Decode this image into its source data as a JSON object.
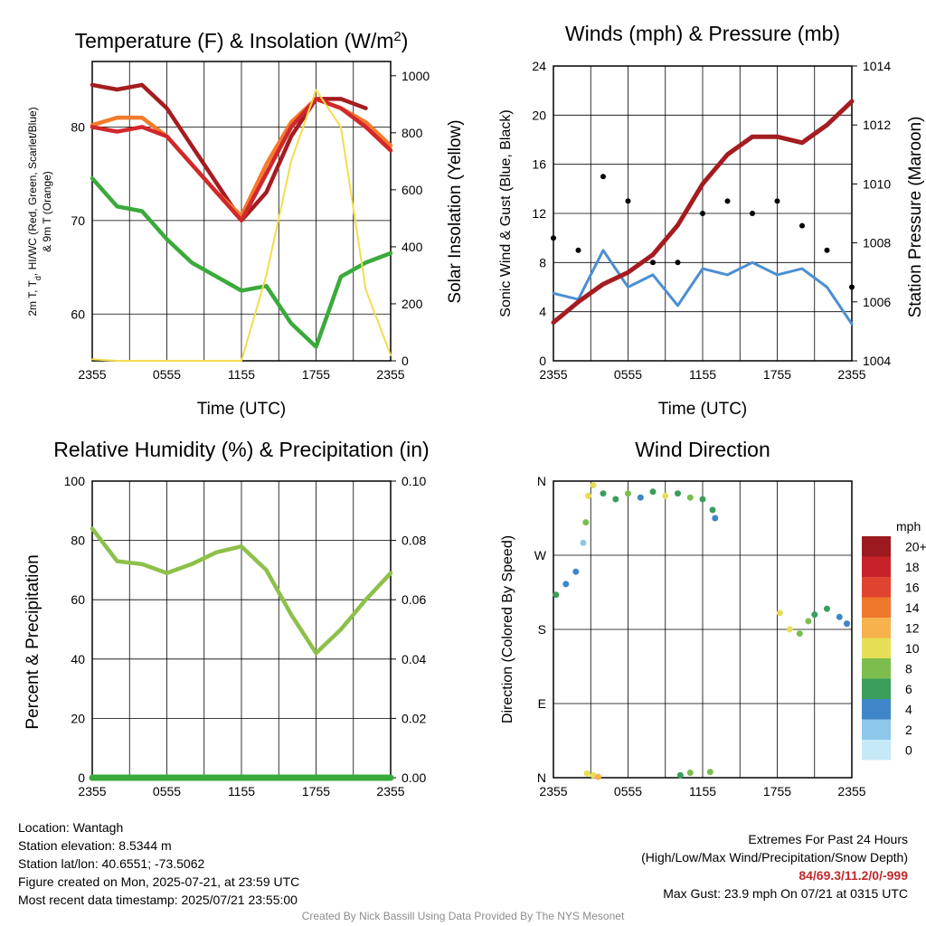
{
  "station": {
    "location_label": "Location: Wantagh",
    "elevation_label": "Station elevation: 8.5344 m",
    "latlon_label": "Station lat/lon: 40.6551; -73.5062",
    "created_label": "Figure created on Mon, 2025-07-21, at 23:59 UTC",
    "recent_label": "Most recent data timestamp: 2025/07/21 23:55:00"
  },
  "extremes": {
    "title": "Extremes For Past 24 Hours",
    "subtitle": "(High/Low/Max Wind/Precipitation/Snow Depth)",
    "values": "84/69.3/11.2/0/-999",
    "max_gust": "Max Gust: 23.9 mph On 07/21 at 0315 UTC"
  },
  "credit": "Created By Nick Bassill Using Data Provided By The NYS Mesonet",
  "time_ticks": [
    "2355",
    "0555",
    "1155",
    "1755",
    "2355"
  ],
  "chart_data": [
    {
      "id": "temperature",
      "type": "line",
      "title": "Temperature (F) & Insolation (W/m",
      "title_sup": "2",
      "title_end": ")",
      "xlabel": "Time (UTC)",
      "ylabel_lines": [
        "2m T, T",
        "d",
        ", HI/WC (Red, Green, Scarlet/Blue)",
        "& 9m T (Orange)"
      ],
      "y2label": "Solar Insolation (Yellow)",
      "x": [
        0,
        2,
        4,
        6,
        8,
        10,
        12,
        14,
        16,
        18,
        20,
        22,
        24
      ],
      "ylim": [
        55,
        87
      ],
      "y_ticks": [
        "60",
        "70",
        "80"
      ],
      "y2lim": [
        0,
        1050
      ],
      "y2_ticks": [
        "0",
        "200",
        "400",
        "600",
        "800",
        "1000"
      ],
      "series": [
        {
          "role": "heat-index",
          "color": "#a51c20",
          "values": [
            84.5,
            84,
            84.5,
            82,
            78,
            74,
            70,
            73,
            79,
            83,
            83,
            82,
            null
          ]
        },
        {
          "role": "9m-temperature",
          "color": "#f47a2c",
          "values": [
            80.2,
            81,
            81,
            79,
            76,
            73,
            70.5,
            76,
            80.5,
            83,
            82,
            80.5,
            78
          ]
        },
        {
          "role": "2m-temperature",
          "color": "#d1282b",
          "values": [
            80,
            79.5,
            80,
            79,
            76,
            73,
            70,
            75,
            80,
            83,
            82,
            80,
            77.5
          ]
        },
        {
          "role": "dewpoint",
          "color": "#3aaa3a",
          "values": [
            74.5,
            71.5,
            71,
            68,
            65.5,
            64,
            62.5,
            63,
            59,
            56.5,
            64,
            65.5,
            66.5
          ]
        },
        {
          "role": "solar-insolation",
          "color": "#f4dc4c",
          "axis": "right",
          "values": [
            5,
            0,
            0,
            0,
            0,
            0,
            0,
            300,
            700,
            950,
            820,
            250,
            20
          ]
        }
      ]
    },
    {
      "id": "wind",
      "type": "line",
      "title": "Winds (mph) & Pressure (mb)",
      "xlabel": "Time (UTC)",
      "ylabel": "Sonic Wind & Gust (Blue, Black)",
      "y2label": "Station Pressure (Maroon)",
      "x": [
        0,
        2,
        4,
        6,
        8,
        10,
        12,
        14,
        16,
        18,
        20,
        22,
        24
      ],
      "ylim": [
        0,
        24
      ],
      "y_ticks": [
        "0",
        "4",
        "8",
        "12",
        "16",
        "20",
        "24"
      ],
      "y2lim": [
        1004,
        1014
      ],
      "y2_ticks": [
        "1004",
        "1006",
        "1008",
        "1010",
        "1012",
        "1014"
      ],
      "series": [
        {
          "role": "sustained-wind",
          "color": "#4b8fd1",
          "values": [
            5.5,
            5,
            9,
            6,
            7,
            4.5,
            7.5,
            7,
            8,
            7,
            7.5,
            6,
            3
          ]
        },
        {
          "role": "gust",
          "color": "#000000",
          "values": [
            10,
            9,
            15,
            13,
            8,
            8,
            12,
            13,
            12,
            13,
            11,
            9,
            6
          ]
        },
        {
          "role": "pressure",
          "color": "#a51c20",
          "axis": "right",
          "values": [
            1005.3,
            1006,
            1006.6,
            1007,
            1007.6,
            1008.6,
            1010,
            1011,
            1011.6,
            1011.6,
            1011.4,
            1012,
            1012.8
          ]
        }
      ]
    },
    {
      "id": "humidity",
      "type": "line",
      "title": "Relative Humidity (%) & Precipitation (in)",
      "ylabel": "Percent & Precipitation",
      "x": [
        0,
        2,
        4,
        6,
        8,
        10,
        12,
        14,
        16,
        18,
        20,
        22,
        24
      ],
      "ylim": [
        0,
        100
      ],
      "y_ticks": [
        "0",
        "20",
        "40",
        "60",
        "80",
        "100"
      ],
      "y2lim": [
        0,
        0.1
      ],
      "y2_ticks": [
        "0.00",
        "0.02",
        "0.04",
        "0.06",
        "0.08",
        "0.10"
      ],
      "series": [
        {
          "role": "relative-humidity",
          "color": "#8dc04a",
          "values": [
            84,
            73,
            72,
            69,
            72,
            76,
            78,
            70,
            55,
            42,
            50,
            60,
            69
          ]
        },
        {
          "role": "precipitation",
          "color": "#3aaa3a",
          "axis": "right",
          "values": [
            0,
            0,
            0,
            0,
            0,
            0,
            0,
            0,
            0,
            0,
            0,
            0,
            0
          ]
        }
      ]
    },
    {
      "id": "direction",
      "type": "scatter",
      "title": "Wind Direction",
      "ylabel": "Direction (Colored By Speed)",
      "ylim": [
        0,
        360
      ],
      "y_ticks": [
        "N",
        "E",
        "S",
        "W",
        "N"
      ],
      "legend_title": "mph",
      "legend_labels": [
        "0",
        "2",
        "4",
        "6",
        "8",
        "10",
        "12",
        "14",
        "16",
        "18",
        "20+"
      ],
      "legend_colors": [
        "#c6e9f7",
        "#8dc7ea",
        "#3e86c7",
        "#3a9e5a",
        "#7cbe4e",
        "#e6df56",
        "#f7b14d",
        "#f0782d",
        "#e0432f",
        "#c7222a",
        "#9c1a1f"
      ],
      "points": [
        {
          "x": 0.2,
          "y": 222,
          "v": 5
        },
        {
          "x": 1,
          "y": 235,
          "v": 4
        },
        {
          "x": 1.8,
          "y": 250,
          "v": 4
        },
        {
          "x": 2.4,
          "y": 285,
          "v": 2
        },
        {
          "x": 2.6,
          "y": 310,
          "v": 7
        },
        {
          "x": 2.8,
          "y": 342,
          "v": 10
        },
        {
          "x": 3.2,
          "y": 355,
          "v": 9
        },
        {
          "x": 4,
          "y": 345,
          "v": 6
        },
        {
          "x": 5,
          "y": 338,
          "v": 5
        },
        {
          "x": 6,
          "y": 345,
          "v": 7
        },
        {
          "x": 7,
          "y": 340,
          "v": 4
        },
        {
          "x": 8,
          "y": 347,
          "v": 6
        },
        {
          "x": 9,
          "y": 342,
          "v": 9
        },
        {
          "x": 10,
          "y": 345,
          "v": 5
        },
        {
          "x": 11,
          "y": 340,
          "v": 7
        },
        {
          "x": 12,
          "y": 338,
          "v": 6
        },
        {
          "x": 12.8,
          "y": 325,
          "v": 6
        },
        {
          "x": 13,
          "y": 315,
          "v": 4
        },
        {
          "x": 2.7,
          "y": 5,
          "v": 9
        },
        {
          "x": 3.2,
          "y": 3,
          "v": 10
        },
        {
          "x": 3.6,
          "y": 1,
          "v": 11
        },
        {
          "x": 10.2,
          "y": 3,
          "v": 6
        },
        {
          "x": 11,
          "y": 6,
          "v": 8
        },
        {
          "x": 12.6,
          "y": 7,
          "v": 7
        },
        {
          "x": 18.2,
          "y": 200,
          "v": 9
        },
        {
          "x": 19,
          "y": 180,
          "v": 10
        },
        {
          "x": 19.8,
          "y": 175,
          "v": 8
        },
        {
          "x": 21,
          "y": 198,
          "v": 6
        },
        {
          "x": 22,
          "y": 205,
          "v": 5
        },
        {
          "x": 23,
          "y": 195,
          "v": 4
        },
        {
          "x": 23.6,
          "y": 187,
          "v": 4
        },
        {
          "x": 20.5,
          "y": 190,
          "v": 8
        }
      ]
    }
  ]
}
